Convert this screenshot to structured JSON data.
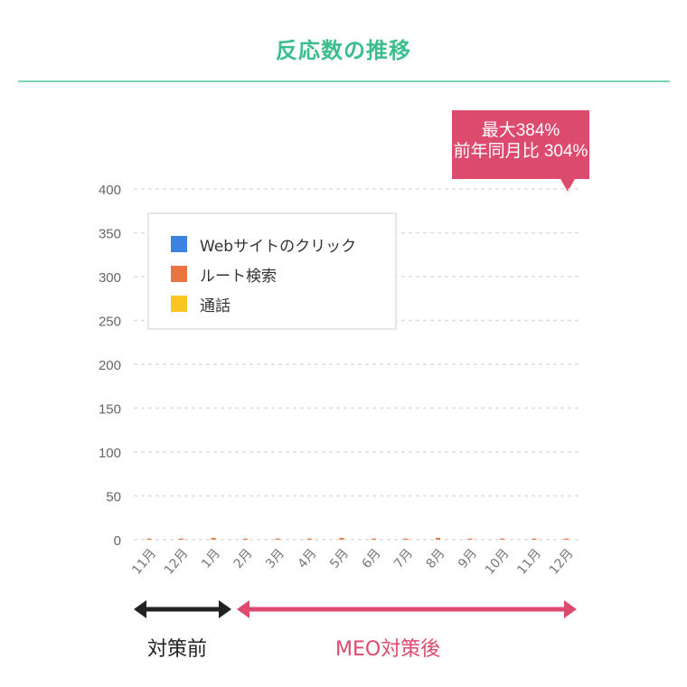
{
  "header": {
    "title": "反応数の推移"
  },
  "callout": {
    "line1": "最大384%",
    "line2": "前年同月比 304%"
  },
  "chart_data": {
    "type": "bar",
    "title": "反応数の推移",
    "categories": [
      "11月",
      "12月",
      "1月",
      "2月",
      "3月",
      "4月",
      "5月",
      "6月",
      "7月",
      "8月",
      "9月",
      "10月",
      "11月",
      "12月"
    ],
    "yticks": [
      "0",
      "50",
      "100",
      "150",
      "200",
      "250",
      "300",
      "350",
      "400"
    ],
    "ylim": [
      0,
      400
    ],
    "grid": true,
    "legend_placement": "top-left",
    "series": [
      {
        "name": "Webサイトのクリック",
        "color": "#3b83e0",
        "values": [
          0,
          0,
          0,
          0,
          0,
          0,
          0,
          0,
          0,
          0,
          0,
          0,
          0,
          0
        ]
      },
      {
        "name": "ルート検索",
        "color": "#ea7440",
        "values": [
          1,
          1,
          2,
          1,
          1,
          1,
          2,
          1,
          1,
          2,
          1,
          1,
          1,
          1
        ]
      },
      {
        "name": "通話",
        "color": "#f8c523",
        "values": [
          0,
          0,
          0,
          0,
          0,
          0,
          0,
          0,
          0,
          0,
          0,
          0,
          0,
          0
        ]
      }
    ]
  },
  "phases": {
    "before": {
      "label": "対策前",
      "color": "#222222"
    },
    "after": {
      "label": "MEO対策後",
      "color": "#dc4a6d"
    }
  }
}
